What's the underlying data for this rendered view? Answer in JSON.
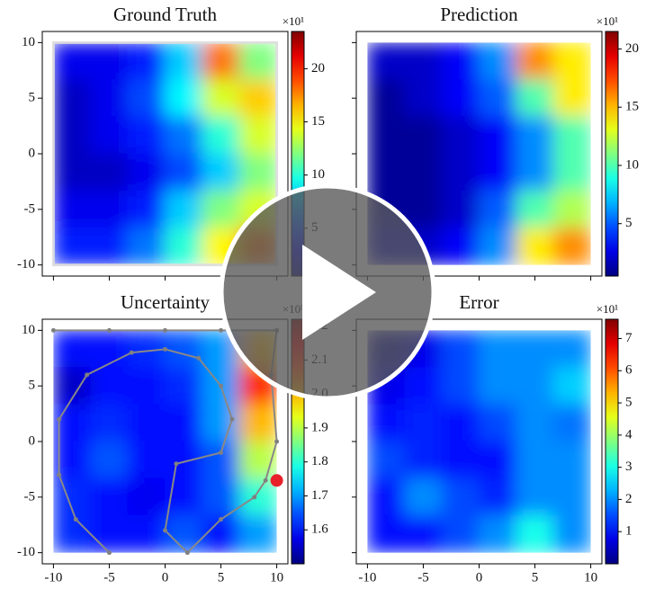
{
  "chart_data": [
    {
      "type": "heatmap",
      "title": "Ground Truth",
      "xlim": [
        -11,
        11
      ],
      "ylim": [
        -11,
        11
      ],
      "xticks": [
        -10,
        -5,
        0,
        5,
        10
      ],
      "yticks": [
        -10,
        -5,
        0,
        5,
        10
      ],
      "colorbar": {
        "scale_label": "×10¹",
        "lim": [
          0.5,
          23.5
        ],
        "ticks": [
          5,
          10,
          15,
          20
        ]
      },
      "frame": true,
      "z": [
        [
          3,
          3,
          4,
          8,
          18,
          12
        ],
        [
          2,
          3,
          5,
          9,
          14,
          16
        ],
        [
          2,
          3,
          4,
          6,
          10,
          14
        ],
        [
          2,
          2,
          3,
          5,
          8,
          12
        ],
        [
          3,
          3,
          4,
          8,
          12,
          14
        ],
        [
          4,
          4,
          6,
          10,
          15,
          18
        ]
      ]
    },
    {
      "type": "heatmap",
      "title": "Prediction",
      "xlim": [
        -11,
        11
      ],
      "ylim": [
        -11,
        11
      ],
      "xticks": [
        -10,
        -5,
        0,
        5,
        10
      ],
      "yticks": [
        -10,
        -5,
        0,
        5,
        10
      ],
      "colorbar": {
        "scale_label": "×10¹",
        "lim": [
          0.5,
          21.5
        ],
        "ticks": [
          5,
          10,
          15,
          20
        ]
      },
      "z": [
        [
          2,
          2,
          3,
          6,
          16,
          14
        ],
        [
          1,
          2,
          3,
          5,
          10,
          14
        ],
        [
          1,
          1,
          2,
          3,
          6,
          10
        ],
        [
          1,
          1,
          2,
          3,
          6,
          10
        ],
        [
          1,
          1,
          2,
          5,
          10,
          12
        ],
        [
          2,
          2,
          3,
          6,
          14,
          16
        ]
      ]
    },
    {
      "type": "heatmap",
      "title": "Uncertainty",
      "xlim": [
        -11,
        11
      ],
      "ylim": [
        -11,
        11
      ],
      "xticks": [
        -10,
        -5,
        0,
        5,
        10
      ],
      "yticks": [
        -10,
        -5,
        0,
        5,
        10
      ],
      "colorbar": {
        "scale_label": "×10¹",
        "lim": [
          1.5,
          2.22
        ],
        "ticks": [
          1.6,
          1.7,
          1.8,
          1.9,
          {
            "value": 2,
            "label": "2.0"
          },
          2.1,
          2.2
        ]
      },
      "z": [
        [
          1.6,
          1.6,
          1.62,
          1.65,
          1.7,
          2.0
        ],
        [
          1.55,
          1.6,
          1.6,
          1.62,
          1.7,
          2.1
        ],
        [
          1.6,
          1.62,
          1.6,
          1.6,
          1.7,
          2.0
        ],
        [
          1.6,
          1.65,
          1.6,
          1.6,
          1.65,
          1.9
        ],
        [
          1.62,
          1.6,
          1.58,
          1.6,
          1.65,
          1.8
        ],
        [
          1.62,
          1.6,
          1.6,
          1.65,
          1.6,
          1.7
        ]
      ],
      "trajectory": {
        "x": [
          -5,
          -8,
          -9.5,
          -9.5,
          -7,
          -3,
          0,
          3,
          5,
          6,
          5,
          1,
          0,
          2,
          5,
          8,
          9,
          10,
          9.5,
          10,
          5,
          0,
          -5,
          -10
        ],
        "y": [
          -10,
          -7,
          -3,
          2,
          6,
          8,
          8.3,
          7.5,
          5,
          2,
          -1,
          -2,
          -8,
          -10,
          -7,
          -5,
          -3.5,
          0,
          6,
          10,
          10,
          10,
          10,
          10
        ]
      },
      "current": {
        "x": 10,
        "y": -3.5
      }
    },
    {
      "type": "heatmap",
      "title": "Error",
      "xlim": [
        -11,
        11
      ],
      "ylim": [
        -11,
        11
      ],
      "xticks": [
        -10,
        -5,
        0,
        5,
        10
      ],
      "yticks": [
        -10,
        -5,
        0,
        5,
        10
      ],
      "colorbar": {
        "scale_label": "×10¹",
        "lim": [
          0,
          7.6
        ],
        "ticks": [
          1,
          2,
          3,
          4,
          5,
          6,
          7
        ]
      },
      "z": [
        [
          0.3,
          0.8,
          1.5,
          2,
          2,
          2
        ],
        [
          0.8,
          1,
          1.5,
          2,
          2,
          2.5
        ],
        [
          1,
          1.2,
          1,
          1.5,
          2,
          1.8
        ],
        [
          1.5,
          1.2,
          1,
          1,
          2,
          2
        ],
        [
          1,
          2,
          1.5,
          1.2,
          2,
          2
        ],
        [
          1,
          1,
          1.5,
          2,
          3,
          2
        ]
      ]
    }
  ]
}
